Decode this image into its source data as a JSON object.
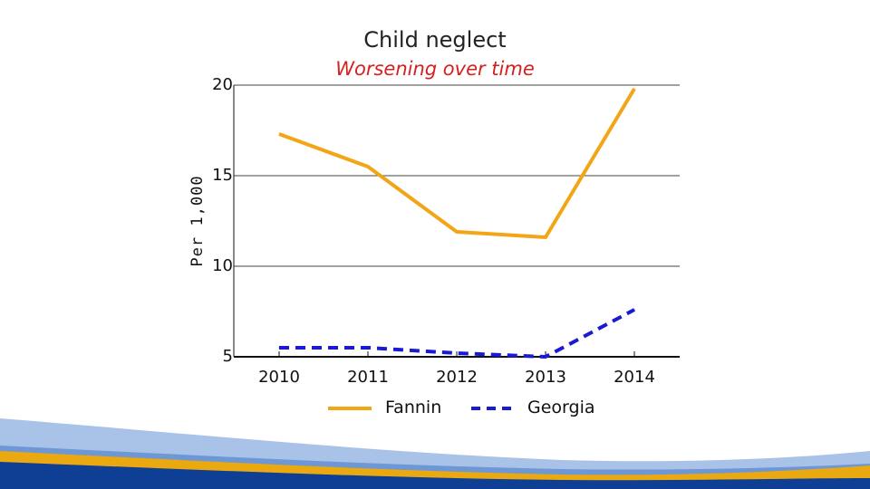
{
  "chart_data": {
    "type": "line",
    "title": "Child neglect",
    "subtitle": "Worsening over time",
    "xlabel": "",
    "ylabel": "Per 1,000",
    "categories": [
      "2010",
      "2011",
      "2012",
      "2013",
      "2014"
    ],
    "yticks": [
      "20",
      "15",
      "10",
      "5"
    ],
    "ylim": [
      5,
      20
    ],
    "grid": true,
    "legend_position": "bottom-center",
    "series": [
      {
        "name": "Fannin",
        "values": [
          17.3,
          15.5,
          11.9,
          11.6,
          19.8
        ],
        "color": "#F2A516",
        "style": "solid"
      },
      {
        "name": "Georgia",
        "values": [
          5.5,
          5.5,
          5.2,
          5.0,
          7.6
        ],
        "color": "#1A1AD4",
        "style": "dashed"
      }
    ]
  },
  "colors": {
    "subtitle": "#D62020",
    "band_light": "#A9C2E8",
    "band_mid": "#6E97D6",
    "band_gold": "#EAA811",
    "band_dark": "#0E3F95"
  }
}
